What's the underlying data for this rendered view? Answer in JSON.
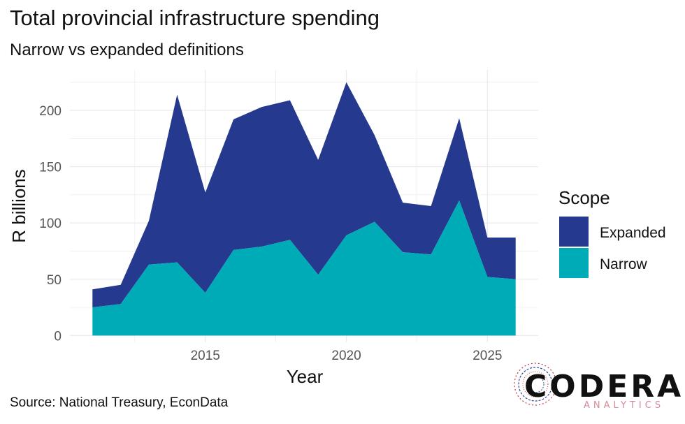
{
  "title": "Total provincial infrastructure spending",
  "subtitle": "Narrow vs expanded definitions",
  "caption": "Source: National Treasury, EconData",
  "logo": {
    "name": "CODERA",
    "tagline": "ANALYTICS"
  },
  "colors": {
    "Expanded": "#253a8e",
    "Narrow": "#00abb8",
    "grid": "#ebebeb"
  },
  "chart_data": {
    "type": "area",
    "stacked": true,
    "xlabel": "Year",
    "ylabel": "R billions",
    "x": [
      2011,
      2012,
      2013,
      2014,
      2015,
      2016,
      2017,
      2018,
      2019,
      2020,
      2021,
      2022,
      2023,
      2024,
      2025,
      2026
    ],
    "series": [
      {
        "name": "Narrow",
        "values": [
          25,
          28,
          63,
          65,
          38,
          76,
          79,
          85,
          54,
          89,
          101,
          74,
          72,
          120,
          52,
          50
        ]
      },
      {
        "name": "Expanded",
        "values": [
          16,
          17,
          39,
          149,
          89,
          116,
          124,
          124,
          102,
          136,
          77,
          44,
          43,
          73,
          35,
          37
        ]
      }
    ],
    "totals": [
      41,
      45,
      102,
      214,
      127,
      192,
      203,
      209,
      156,
      225,
      178,
      118,
      115,
      193,
      87,
      87
    ],
    "xticks": [
      2015,
      2020,
      2025
    ],
    "yticks": [
      0,
      50,
      100,
      150,
      200
    ],
    "xlim": [
      2010.2,
      2026.8
    ],
    "ylim": [
      -6,
      236
    ],
    "legend": {
      "title": "Scope",
      "position": "right",
      "entries": [
        "Expanded",
        "Narrow"
      ]
    },
    "grid": true
  }
}
